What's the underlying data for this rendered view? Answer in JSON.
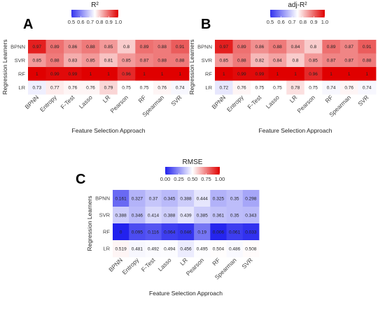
{
  "chart_data": [
    {
      "type": "heatmap",
      "panel": "A",
      "colorbar_title": "R²",
      "colorbar_ticks": [
        "0.5",
        "0.6",
        "0.7",
        "0.8",
        "0.9",
        "1.0"
      ],
      "color_range": [
        0.5,
        1.0
      ],
      "colors": {
        "low": "#3333ee",
        "mid": "#ffffff",
        "high": "#e00000"
      },
      "x_categories": [
        "BPNN",
        "Entropy",
        "F-Test",
        "Lasso",
        "LR",
        "Pearson",
        "RF",
        "Spearman",
        "SVR"
      ],
      "y_categories": [
        "BPNN",
        "SVR",
        "RF",
        "LR"
      ],
      "xlabel": "Feature Selection Approach",
      "ylabel": "Regression Learners",
      "values": [
        [
          0.97,
          0.89,
          0.86,
          0.88,
          0.85,
          0.8,
          0.89,
          0.88,
          0.91
        ],
        [
          0.85,
          0.88,
          0.83,
          0.85,
          0.81,
          0.85,
          0.87,
          0.88,
          0.88
        ],
        [
          1,
          0.99,
          0.99,
          1,
          1,
          0.96,
          1,
          1,
          1
        ],
        [
          0.73,
          0.77,
          0.76,
          0.76,
          0.79,
          0.75,
          0.75,
          0.76,
          0.74
        ]
      ],
      "labels": [
        [
          "0.97",
          "0.89",
          "0.86",
          "0.88",
          "0.85",
          "0.8",
          "0.89",
          "0.88",
          "0.91"
        ],
        [
          "0.85",
          "0.88",
          "0.83",
          "0.85",
          "0.81",
          "0.85",
          "0.87",
          "0.88",
          "0.88"
        ],
        [
          "1",
          "0.99",
          "0.99",
          "1",
          "1",
          "0.96",
          "1",
          "1",
          "1"
        ],
        [
          "0.73",
          "0.77",
          "0.76",
          "0.76",
          "0.79",
          "0.75",
          "0.75",
          "0.76",
          "0.74"
        ]
      ]
    },
    {
      "type": "heatmap",
      "panel": "B",
      "colorbar_title": "adj-R²",
      "colorbar_ticks": [
        "0.5",
        "0.6",
        "0.7",
        "0.8",
        "0.9",
        "1.0"
      ],
      "color_range": [
        0.5,
        1.0
      ],
      "colors": {
        "low": "#3333ee",
        "mid": "#ffffff",
        "high": "#e00000"
      },
      "x_categories": [
        "BPNN",
        "Entropy",
        "F-Test",
        "Lasso",
        "LR",
        "Pearson",
        "RF",
        "Spearman",
        "SVR"
      ],
      "y_categories": [
        "BPNN",
        "SVR",
        "RF",
        "LR"
      ],
      "xlabel": "Feature Selection Approach",
      "ylabel": "Regression Learners",
      "values": [
        [
          0.97,
          0.89,
          0.86,
          0.88,
          0.84,
          0.8,
          0.89,
          0.87,
          0.91
        ],
        [
          0.85,
          0.88,
          0.82,
          0.84,
          0.8,
          0.85,
          0.87,
          0.87,
          0.88
        ],
        [
          1,
          0.99,
          0.99,
          1,
          1,
          0.96,
          1,
          1,
          1
        ],
        [
          0.72,
          0.76,
          0.75,
          0.75,
          0.78,
          0.75,
          0.74,
          0.76,
          0.74
        ]
      ],
      "labels": [
        [
          "0.97",
          "0.89",
          "0.86",
          "0.88",
          "0.84",
          "0.8",
          "0.89",
          "0.87",
          "0.91"
        ],
        [
          "0.85",
          "0.88",
          "0.82",
          "0.84",
          "0.8",
          "0.85",
          "0.87",
          "0.87",
          "0.88"
        ],
        [
          "1",
          "0.99",
          "0.99",
          "1",
          "1",
          "0.96",
          "1",
          "1",
          "1"
        ],
        [
          "0.72",
          "0.76",
          "0.75",
          "0.75",
          "0.78",
          "0.75",
          "0.74",
          "0.76",
          "0.74"
        ]
      ]
    },
    {
      "type": "heatmap",
      "panel": "C",
      "colorbar_title": "RMSE",
      "colorbar_ticks": [
        "0.00",
        "0.25",
        "0.50",
        "0.75",
        "1.00"
      ],
      "color_range": [
        0,
        1.0
      ],
      "colors": {
        "low": "#2222ee",
        "mid": "#ffffff",
        "high": "#e00000"
      },
      "x_categories": [
        "BPNN",
        "Entropy",
        "F-Test",
        "Lasso",
        "LR",
        "Pearson",
        "RF",
        "Spearman",
        "SVR"
      ],
      "y_categories": [
        "BPNN",
        "SVR",
        "RF",
        "LR"
      ],
      "xlabel": "Feature Selection Approach",
      "ylabel": "Regression Learners",
      "values": [
        [
          0.161,
          0.327,
          0.37,
          0.345,
          0.388,
          0.444,
          0.325,
          0.35,
          0.298
        ],
        [
          0.388,
          0.346,
          0.414,
          0.388,
          0.439,
          0.385,
          0.361,
          0.35,
          0.343
        ],
        [
          0,
          0.095,
          0.116,
          0.064,
          0.046,
          0.19,
          0.006,
          0.061,
          0.033
        ],
        [
          0.519,
          0.481,
          0.492,
          0.494,
          0.456,
          0.495,
          0.504,
          0.486,
          0.508
        ]
      ],
      "labels": [
        [
          "0.161",
          "0.327",
          "0.37",
          "0.345",
          "0.388",
          "0.444",
          "0.325",
          "0.35",
          "0.298"
        ],
        [
          "0.388",
          "0.346",
          "0.414",
          "0.388",
          "0.439",
          "0.385",
          "0.361",
          "0.35",
          "0.343"
        ],
        [
          "0",
          "0.095",
          "0.116",
          "0.064",
          "0.046",
          "0.19",
          "0.006",
          "0.061",
          "0.033"
        ],
        [
          "0.519",
          "0.481",
          "0.492",
          "0.494",
          "0.456",
          "0.495",
          "0.504",
          "0.486",
          "0.508"
        ]
      ]
    }
  ]
}
